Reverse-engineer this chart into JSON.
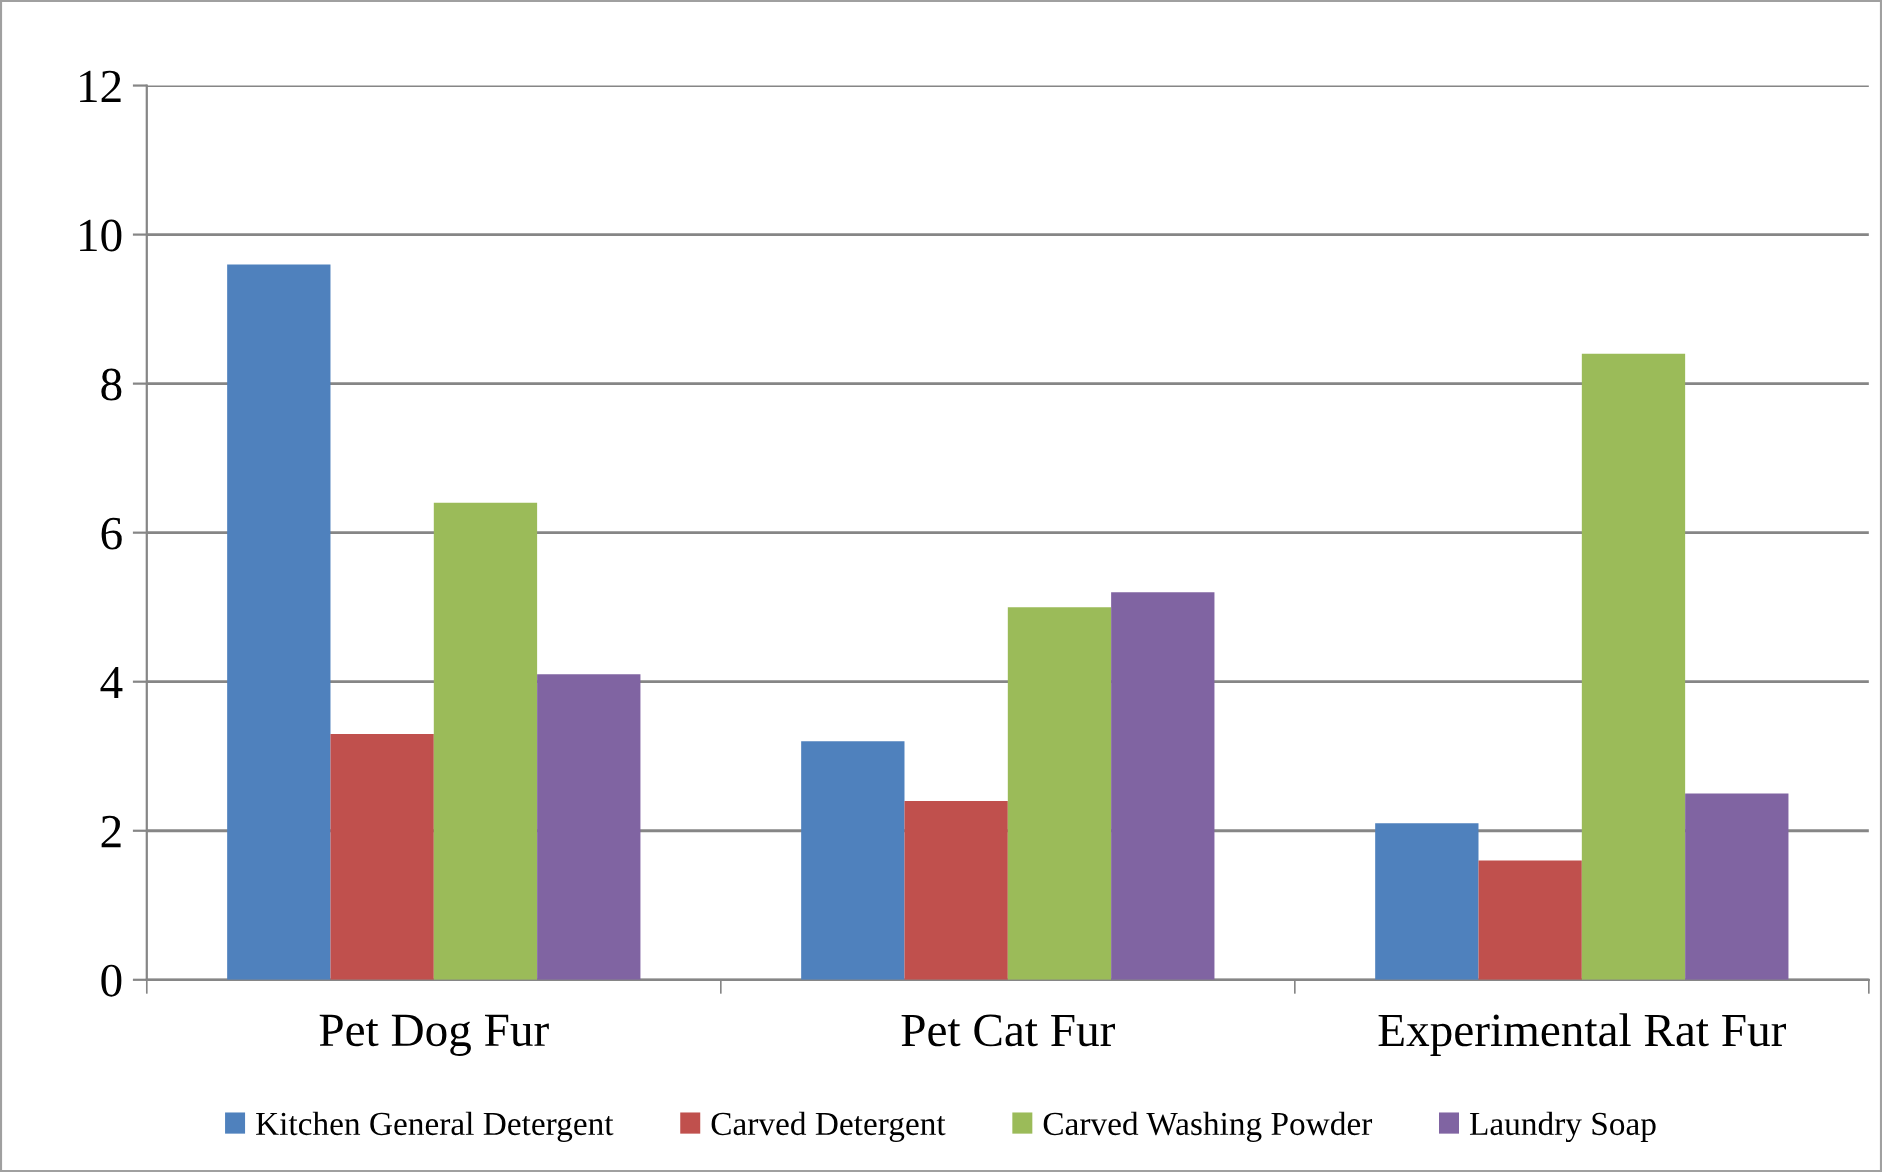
{
  "chart_data": {
    "type": "bar",
    "categories": [
      "Pet Dog Fur",
      "Pet Cat Fur",
      "Experimental Rat Fur"
    ],
    "series": [
      {
        "name": "Kitchen General Detergent",
        "color": "#4f81bd",
        "values": [
          9.6,
          3.2,
          2.1
        ]
      },
      {
        "name": "Carved Detergent",
        "color": "#c0504d",
        "values": [
          3.3,
          2.4,
          1.6
        ]
      },
      {
        "name": "Carved Washing Powder",
        "color": "#9bbb59",
        "values": [
          6.4,
          5.0,
          8.4
        ]
      },
      {
        "name": "Laundry Soap",
        "color": "#8064a2",
        "values": [
          4.1,
          5.2,
          2.5
        ]
      }
    ],
    "ylim": [
      0,
      12
    ],
    "yticks": [
      0,
      2,
      4,
      6,
      8,
      10,
      12
    ],
    "grid": "y",
    "legend": "bottom"
  }
}
